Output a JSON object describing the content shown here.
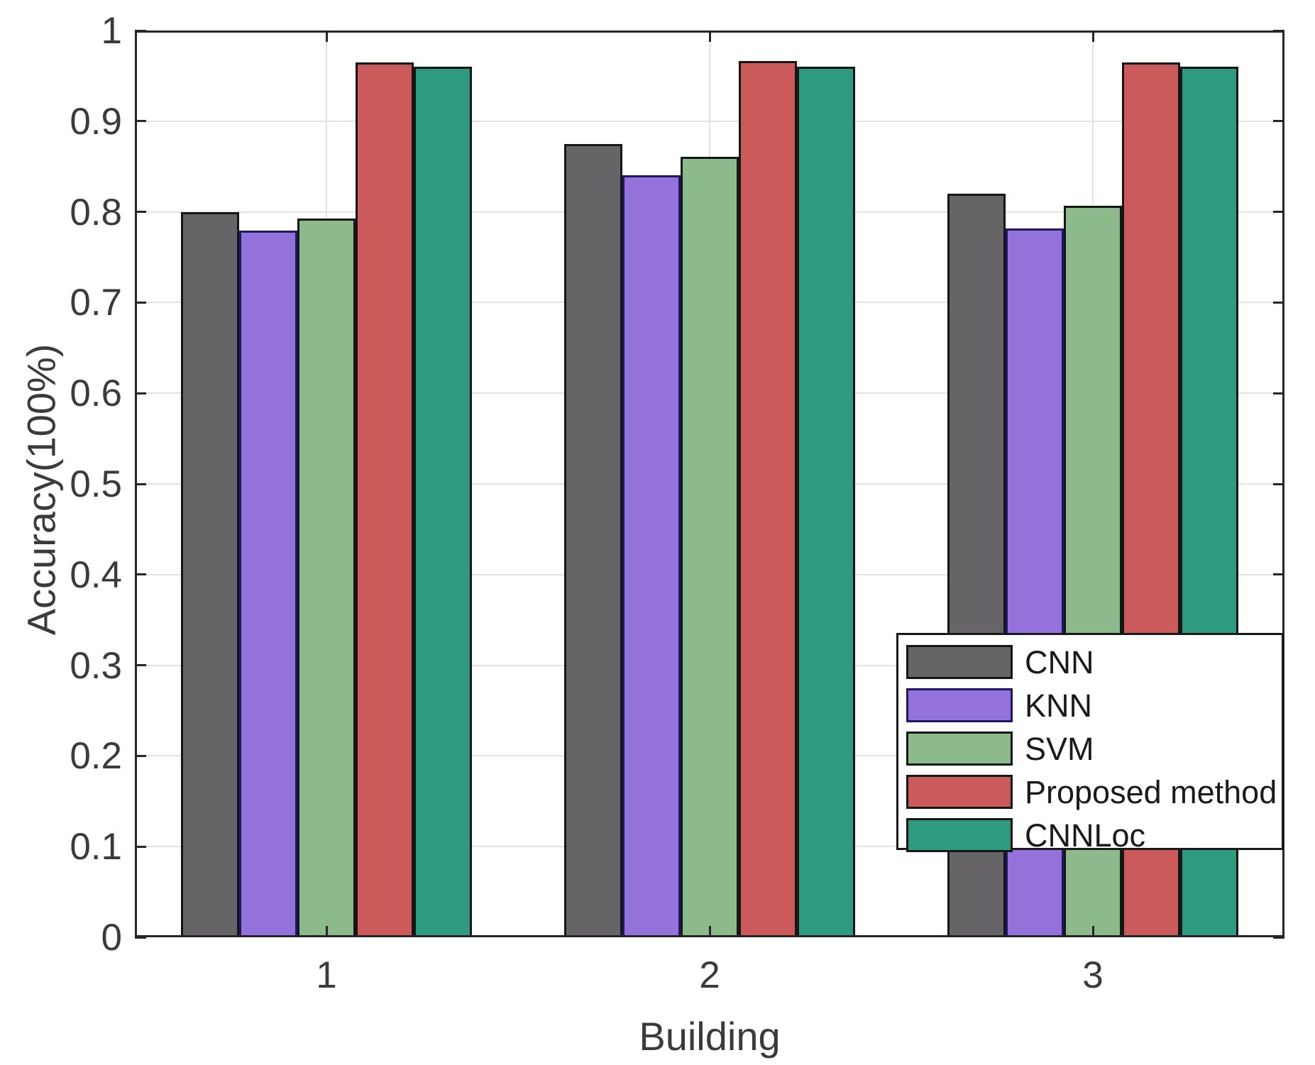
{
  "chart_data": {
    "type": "bar",
    "title": "",
    "xlabel": "Building",
    "ylabel": "Accuracy(100%)",
    "categories": [
      "1",
      "2",
      "3"
    ],
    "series": [
      {
        "name": "CNN",
        "color": "#666466",
        "edge_color": "#161616",
        "values": [
          0.8,
          0.875,
          0.82
        ]
      },
      {
        "name": "KNN",
        "color": "#9472DB",
        "edge_color": "#1E1863",
        "values": [
          0.779,
          0.84,
          0.782
        ]
      },
      {
        "name": "SVM",
        "color": "#8CBA8C",
        "edge_color": "#161616",
        "values": [
          0.793,
          0.861,
          0.807
        ]
      },
      {
        "name": "Proposed method",
        "color": "#CB5A5B",
        "edge_color": "#161616",
        "values": [
          0.965,
          0.966,
          0.965
        ]
      },
      {
        "name": "CNNLoc",
        "color": "#2E9B80",
        "edge_color": "#161616",
        "values": [
          0.96,
          0.96,
          0.96
        ]
      }
    ],
    "ylim": [
      0,
      1
    ],
    "yticks": {
      "values": [
        0,
        0.1,
        0.2,
        0.3,
        0.4,
        0.5,
        0.6,
        0.7,
        0.8,
        0.9,
        1
      ],
      "labels": [
        "0",
        "0.1",
        "0.2",
        "0.3",
        "0.4",
        "0.5",
        "0.6",
        "0.7",
        "0.8",
        "0.9",
        "1"
      ]
    },
    "grid": true,
    "legend": {
      "position": "lower-right",
      "entries": [
        "CNN",
        "KNN",
        "SVM",
        "Proposed method",
        "CNNLoc"
      ]
    },
    "axis_color": "#262626",
    "grid_color": "#E2E2E2",
    "background": "#FFFFFF",
    "text_color": "#3B3B3B"
  }
}
